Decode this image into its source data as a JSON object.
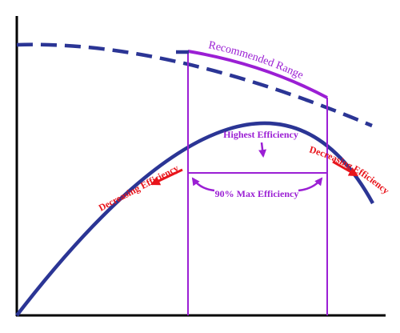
{
  "labels": {
    "recommended_range": "Recommended Range",
    "highest_efficiency": "Highest Efficiency",
    "max_efficiency_90": "90% Max Efficiency",
    "decreasing_left": "Decreasing Efficiency",
    "decreasing_right": "Decreasing Efficiency"
  },
  "colors": {
    "curve": "#2b3595",
    "range": "#9b1fd4",
    "warning": "#e8141b",
    "axis": "#000000"
  }
}
